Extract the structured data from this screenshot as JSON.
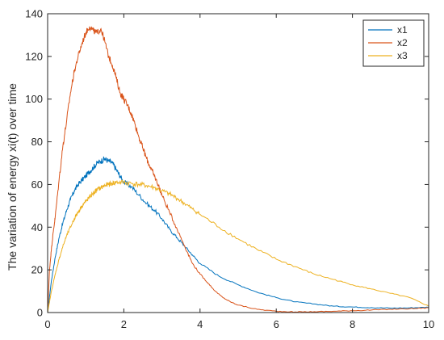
{
  "chart_data": {
    "type": "line",
    "title": "",
    "xlabel": "",
    "ylabel": "The variation of energy xi(t) over time",
    "xlim": [
      0,
      10
    ],
    "ylim": [
      0,
      140
    ],
    "xticks": [
      "0",
      "2",
      "4",
      "6",
      "8",
      "10"
    ],
    "yticks": [
      "0",
      "20",
      "40",
      "60",
      "80",
      "100",
      "120",
      "140"
    ],
    "grid": false,
    "legend_position": "top-right",
    "series": [
      {
        "name": "x1",
        "color": "#0072BD",
        "points": [
          [
            0,
            0
          ],
          [
            0.1,
            15
          ],
          [
            0.2,
            26
          ],
          [
            0.3,
            35
          ],
          [
            0.4,
            42
          ],
          [
            0.5,
            48
          ],
          [
            0.6,
            53
          ],
          [
            0.7,
            57
          ],
          [
            0.8,
            60
          ],
          [
            0.9,
            62
          ],
          [
            1.0,
            64
          ],
          [
            1.1,
            66
          ],
          [
            1.2,
            68
          ],
          [
            1.3,
            70
          ],
          [
            1.4,
            71
          ],
          [
            1.5,
            72
          ],
          [
            1.6,
            71
          ],
          [
            1.7,
            70
          ],
          [
            1.8,
            67
          ],
          [
            1.9,
            64
          ],
          [
            2.0,
            61
          ],
          [
            2.2,
            59
          ],
          [
            2.4,
            55
          ],
          [
            2.6,
            51
          ],
          [
            2.8,
            48
          ],
          [
            3.0,
            44
          ],
          [
            3.2,
            39
          ],
          [
            3.4,
            35
          ],
          [
            3.6,
            31
          ],
          [
            3.8,
            27
          ],
          [
            4.0,
            23
          ],
          [
            4.5,
            17
          ],
          [
            5.0,
            13
          ],
          [
            5.5,
            9.5
          ],
          [
            6.0,
            7
          ],
          [
            6.5,
            5
          ],
          [
            7.0,
            4
          ],
          [
            7.5,
            3
          ],
          [
            8.0,
            2.6
          ],
          [
            8.5,
            2.3
          ],
          [
            9.0,
            2.1
          ],
          [
            9.5,
            2.2
          ],
          [
            10.0,
            2.5
          ]
        ]
      },
      {
        "name": "x2",
        "color": "#D95319",
        "points": [
          [
            0,
            0
          ],
          [
            0.05,
            20
          ],
          [
            0.1,
            30
          ],
          [
            0.15,
            38
          ],
          [
            0.2,
            45
          ],
          [
            0.3,
            62
          ],
          [
            0.4,
            78
          ],
          [
            0.5,
            90
          ],
          [
            0.6,
            103
          ],
          [
            0.7,
            113
          ],
          [
            0.8,
            120
          ],
          [
            0.9,
            126
          ],
          [
            1.0,
            131
          ],
          [
            1.1,
            134
          ],
          [
            1.2,
            132
          ],
          [
            1.3,
            131
          ],
          [
            1.4,
            133
          ],
          [
            1.5,
            127
          ],
          [
            1.6,
            120
          ],
          [
            1.7,
            116
          ],
          [
            1.8,
            110
          ],
          [
            1.9,
            103
          ],
          [
            2.0,
            100
          ],
          [
            2.1,
            97
          ],
          [
            2.2,
            93
          ],
          [
            2.3,
            88
          ],
          [
            2.4,
            82
          ],
          [
            2.5,
            77
          ],
          [
            2.6,
            72
          ],
          [
            2.7,
            68
          ],
          [
            2.8,
            64
          ],
          [
            2.9,
            60
          ],
          [
            3.0,
            55
          ],
          [
            3.2,
            47
          ],
          [
            3.4,
            39
          ],
          [
            3.6,
            31
          ],
          [
            3.8,
            23
          ],
          [
            4.0,
            18
          ],
          [
            4.2,
            14
          ],
          [
            4.4,
            10
          ],
          [
            4.6,
            7
          ],
          [
            4.8,
            5
          ],
          [
            5.0,
            3.5
          ],
          [
            5.5,
            1.5
          ],
          [
            6.0,
            0.6
          ],
          [
            6.5,
            0.3
          ],
          [
            7.0,
            0.4
          ],
          [
            7.5,
            0.6
          ],
          [
            8.0,
            0.9
          ],
          [
            8.5,
            1.2
          ],
          [
            9.0,
            1.5
          ],
          [
            9.5,
            1.8
          ],
          [
            10.0,
            2.2
          ]
        ]
      },
      {
        "name": "x3",
        "color": "#EDB120",
        "points": [
          [
            0,
            0
          ],
          [
            0.1,
            10
          ],
          [
            0.2,
            18
          ],
          [
            0.3,
            25
          ],
          [
            0.4,
            31
          ],
          [
            0.5,
            36
          ],
          [
            0.6,
            40
          ],
          [
            0.7,
            44
          ],
          [
            0.8,
            47
          ],
          [
            0.9,
            50
          ],
          [
            1.0,
            52
          ],
          [
            1.1,
            54
          ],
          [
            1.2,
            56
          ],
          [
            1.3,
            57.5
          ],
          [
            1.4,
            58.5
          ],
          [
            1.5,
            59.5
          ],
          [
            1.6,
            60
          ],
          [
            1.7,
            60.5
          ],
          [
            1.8,
            61
          ],
          [
            2.0,
            61
          ],
          [
            2.2,
            60.5
          ],
          [
            2.4,
            60
          ],
          [
            2.6,
            59.5
          ],
          [
            2.8,
            58.5
          ],
          [
            3.0,
            57
          ],
          [
            3.2,
            55.5
          ],
          [
            3.4,
            53.5
          ],
          [
            3.6,
            51
          ],
          [
            3.8,
            48.5
          ],
          [
            4.0,
            46
          ],
          [
            4.5,
            40
          ],
          [
            5.0,
            34.5
          ],
          [
            5.5,
            29.5
          ],
          [
            6.0,
            25
          ],
          [
            6.5,
            21.5
          ],
          [
            7.0,
            18
          ],
          [
            7.5,
            15.5
          ],
          [
            8.0,
            13
          ],
          [
            8.5,
            11
          ],
          [
            9.0,
            9
          ],
          [
            9.5,
            7
          ],
          [
            10.0,
            3
          ]
        ]
      }
    ]
  }
}
